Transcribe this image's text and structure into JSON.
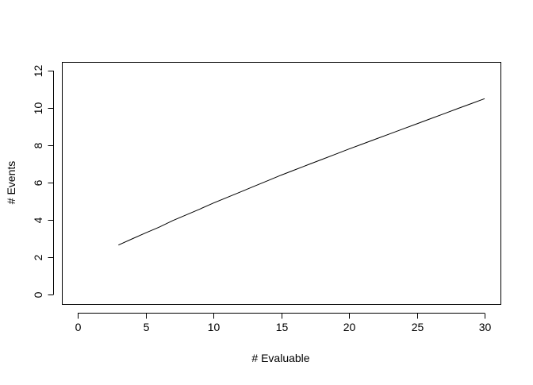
{
  "chart_data": {
    "type": "line",
    "title": "",
    "xlabel": "# Evaluable",
    "ylabel": "# Events",
    "xlim": [
      0,
      30
    ],
    "ylim": [
      0,
      12
    ],
    "xticks": [
      0,
      5,
      10,
      15,
      20,
      25,
      30
    ],
    "yticks": [
      0,
      2,
      4,
      6,
      8,
      10,
      12
    ],
    "grid": false,
    "line_color": "#000000",
    "x": [
      3,
      4,
      5,
      6,
      7,
      8,
      9,
      10,
      11,
      12,
      13,
      14,
      15,
      16,
      17,
      18,
      19,
      20,
      21,
      22,
      23,
      24,
      25,
      26,
      27,
      28,
      29,
      30
    ],
    "y": [
      2.65,
      2.98,
      3.3,
      3.61,
      3.96,
      4.27,
      4.58,
      4.9,
      5.2,
      5.5,
      5.8,
      6.1,
      6.4,
      6.68,
      6.96,
      7.24,
      7.52,
      7.8,
      8.07,
      8.34,
      8.61,
      8.88,
      9.15,
      9.42,
      9.69,
      9.96,
      10.23,
      10.5
    ]
  }
}
